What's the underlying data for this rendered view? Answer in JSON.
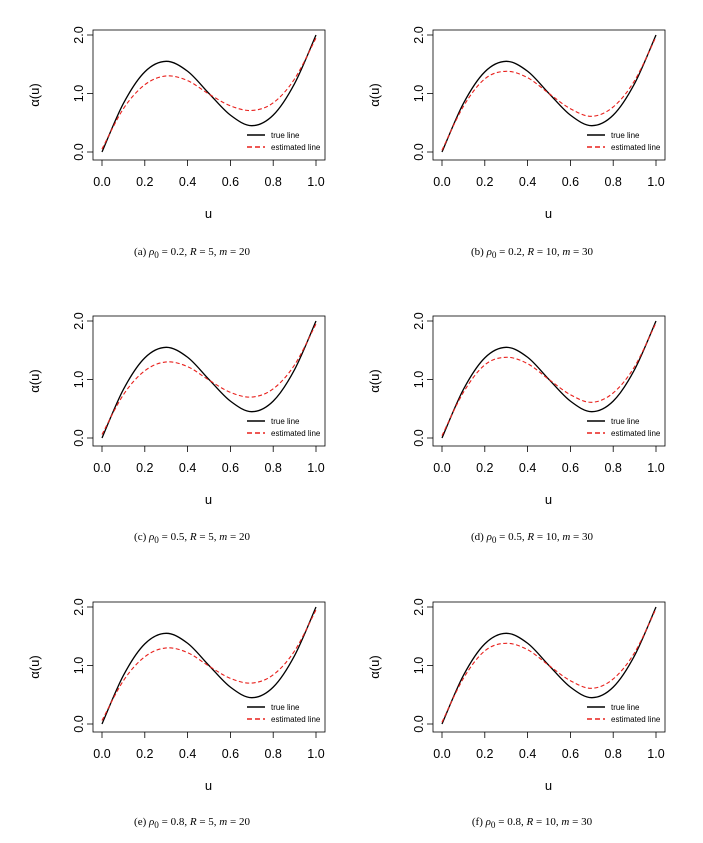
{
  "figure": {
    "shared": {
      "xlabel": "u",
      "ylabel": "α(u)",
      "xlim": [
        0,
        1
      ],
      "ylim": [
        0,
        2
      ],
      "xticks": [
        "0.0",
        "0.2",
        "0.4",
        "0.6",
        "0.8",
        "1.0"
      ],
      "yticks": [
        "0.0",
        "1.0",
        "2.0"
      ],
      "legend_true": "true line",
      "legend_est": "estimated line",
      "true_color": "#000000",
      "est_color": "#e8201c"
    }
  },
  "chart_data": [
    {
      "type": "line",
      "caption": {
        "label": "(a)",
        "rho_sym": "ρ",
        "rho_sub": "0",
        "rho": "= 0.2,",
        "R_sym": "R",
        "R": "= 5,",
        "m_sym": "m",
        "m": "= 20"
      },
      "legend": "bottom-right",
      "series": [
        {
          "name": "true line",
          "x": [
            0,
            0.1,
            0.2,
            0.3,
            0.4,
            0.5,
            0.6,
            0.7,
            0.8,
            0.9,
            1.0
          ],
          "y": [
            0,
            0.83,
            1.37,
            1.55,
            1.38,
            1.0,
            0.63,
            0.45,
            0.63,
            1.17,
            2.0
          ]
        },
        {
          "name": "estimated line",
          "x": [
            0,
            0.1,
            0.2,
            0.3,
            0.4,
            0.5,
            0.6,
            0.7,
            0.8,
            0.9,
            1.0
          ],
          "y": [
            0.05,
            0.74,
            1.15,
            1.3,
            1.22,
            0.99,
            0.79,
            0.71,
            0.84,
            1.25,
            1.95
          ]
        }
      ]
    },
    {
      "type": "line",
      "caption": {
        "label": "(b)",
        "rho_sym": "ρ",
        "rho_sub": "0",
        "rho": "= 0.2,",
        "R_sym": "R",
        "R": "= 10,",
        "m_sym": "m",
        "m": "= 30"
      },
      "legend": "bottom-right",
      "series": [
        {
          "name": "true line",
          "x": [
            0,
            0.1,
            0.2,
            0.3,
            0.4,
            0.5,
            0.6,
            0.7,
            0.8,
            0.9,
            1.0
          ],
          "y": [
            0,
            0.83,
            1.37,
            1.55,
            1.38,
            1.0,
            0.63,
            0.45,
            0.63,
            1.17,
            2.0
          ]
        },
        {
          "name": "estimated line",
          "x": [
            0,
            0.1,
            0.2,
            0.3,
            0.4,
            0.5,
            0.6,
            0.7,
            0.8,
            0.9,
            1.0
          ],
          "y": [
            0.03,
            0.78,
            1.25,
            1.38,
            1.27,
            1.0,
            0.74,
            0.61,
            0.77,
            1.22,
            1.97
          ]
        }
      ]
    },
    {
      "type": "line",
      "caption": {
        "label": "(c)",
        "rho_sym": "ρ",
        "rho_sub": "0",
        "rho": "= 0.5,",
        "R_sym": "R",
        "R": "= 5,",
        "m_sym": "m",
        "m": "= 20"
      },
      "legend": "bottom-right",
      "series": [
        {
          "name": "true line",
          "x": [
            0,
            0.1,
            0.2,
            0.3,
            0.4,
            0.5,
            0.6,
            0.7,
            0.8,
            0.9,
            1.0
          ],
          "y": [
            0,
            0.83,
            1.37,
            1.55,
            1.38,
            1.0,
            0.63,
            0.45,
            0.63,
            1.17,
            2.0
          ]
        },
        {
          "name": "estimated line",
          "x": [
            0,
            0.1,
            0.2,
            0.3,
            0.4,
            0.5,
            0.6,
            0.7,
            0.8,
            0.9,
            1.0
          ],
          "y": [
            0.06,
            0.74,
            1.15,
            1.3,
            1.22,
            0.99,
            0.78,
            0.7,
            0.84,
            1.25,
            1.95
          ]
        }
      ]
    },
    {
      "type": "line",
      "caption": {
        "label": "(d)",
        "rho_sym": "ρ",
        "rho_sub": "0",
        "rho": "= 0.5,",
        "R_sym": "R",
        "R": "= 10,",
        "m_sym": "m",
        "m": "= 30"
      },
      "legend": "bottom-right",
      "series": [
        {
          "name": "true line",
          "x": [
            0,
            0.1,
            0.2,
            0.3,
            0.4,
            0.5,
            0.6,
            0.7,
            0.8,
            0.9,
            1.0
          ],
          "y": [
            0,
            0.83,
            1.37,
            1.55,
            1.38,
            1.0,
            0.63,
            0.45,
            0.63,
            1.17,
            2.0
          ]
        },
        {
          "name": "estimated line",
          "x": [
            0,
            0.1,
            0.2,
            0.3,
            0.4,
            0.5,
            0.6,
            0.7,
            0.8,
            0.9,
            1.0
          ],
          "y": [
            0.04,
            0.78,
            1.25,
            1.38,
            1.27,
            1.0,
            0.74,
            0.61,
            0.77,
            1.22,
            1.97
          ]
        }
      ]
    },
    {
      "type": "line",
      "caption": {
        "label": "(e)",
        "rho_sym": "ρ",
        "rho_sub": "0",
        "rho": "= 0.8,",
        "R_sym": "R",
        "R": "= 5,",
        "m_sym": "m",
        "m": "= 20"
      },
      "legend": "bottom-right",
      "series": [
        {
          "name": "true line",
          "x": [
            0,
            0.1,
            0.2,
            0.3,
            0.4,
            0.5,
            0.6,
            0.7,
            0.8,
            0.9,
            1.0
          ],
          "y": [
            0,
            0.83,
            1.37,
            1.55,
            1.38,
            1.0,
            0.63,
            0.45,
            0.63,
            1.17,
            2.0
          ]
        },
        {
          "name": "estimated line",
          "x": [
            0,
            0.1,
            0.2,
            0.3,
            0.4,
            0.5,
            0.6,
            0.7,
            0.8,
            0.9,
            1.0
          ],
          "y": [
            0.06,
            0.74,
            1.15,
            1.3,
            1.22,
            0.99,
            0.78,
            0.7,
            0.84,
            1.25,
            1.95
          ]
        }
      ]
    },
    {
      "type": "line",
      "caption": {
        "label": "(f)",
        "rho_sym": "ρ",
        "rho_sub": "0",
        "rho": "= 0.8,",
        "R_sym": "R",
        "R": "= 10,",
        "m_sym": "m",
        "m": "= 30"
      },
      "legend": "bottom-right",
      "series": [
        {
          "name": "true line",
          "x": [
            0,
            0.1,
            0.2,
            0.3,
            0.4,
            0.5,
            0.6,
            0.7,
            0.8,
            0.9,
            1.0
          ],
          "y": [
            0,
            0.83,
            1.37,
            1.55,
            1.38,
            1.0,
            0.63,
            0.45,
            0.63,
            1.17,
            2.0
          ]
        },
        {
          "name": "estimated line",
          "x": [
            0,
            0.1,
            0.2,
            0.3,
            0.4,
            0.5,
            0.6,
            0.7,
            0.8,
            0.9,
            1.0
          ],
          "y": [
            0.03,
            0.78,
            1.25,
            1.38,
            1.27,
            1.0,
            0.74,
            0.61,
            0.77,
            1.22,
            1.97
          ]
        }
      ]
    }
  ]
}
